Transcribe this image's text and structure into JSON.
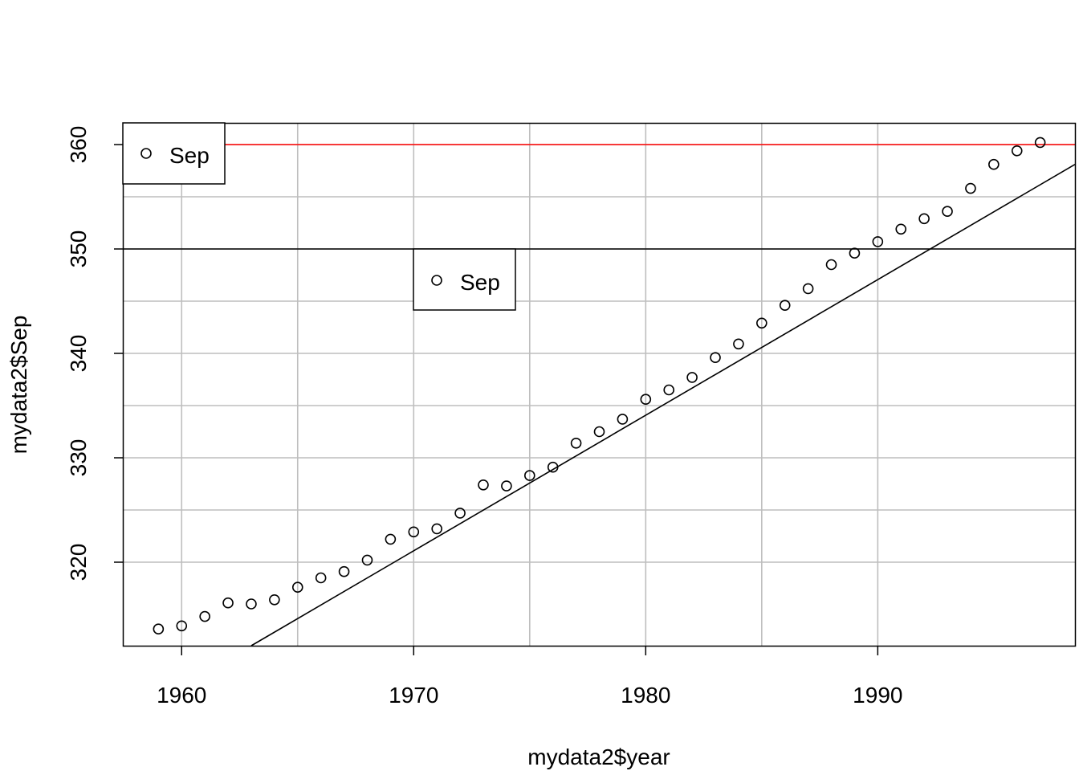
{
  "chart_data": {
    "type": "scatter",
    "xlabel": "mydata2$year",
    "ylabel": "mydata2$Sep",
    "xlim": [
      1957.5,
      1998.5
    ],
    "ylim": [
      312,
      362
    ],
    "xticks": [
      1960,
      1970,
      1980,
      1990
    ],
    "yticks": [
      320,
      330,
      340,
      350,
      360
    ],
    "grid": true,
    "grid_x": [
      1960,
      1965,
      1970,
      1975,
      1980,
      1985,
      1990
    ],
    "grid_y": [
      320,
      325,
      330,
      335,
      340,
      345,
      350,
      355,
      360
    ],
    "x": [
      1959,
      1960,
      1961,
      1962,
      1963,
      1964,
      1965,
      1966,
      1967,
      1968,
      1969,
      1970,
      1971,
      1972,
      1973,
      1974,
      1975,
      1976,
      1977,
      1978,
      1979,
      1980,
      1981,
      1982,
      1983,
      1984,
      1985,
      1986,
      1987,
      1988,
      1989,
      1990,
      1991,
      1992,
      1993,
      1994,
      1995,
      1996,
      1997
    ],
    "y": [
      313.6,
      313.9,
      314.8,
      316.1,
      316.0,
      316.4,
      317.6,
      318.5,
      319.1,
      320.2,
      322.2,
      322.9,
      323.2,
      324.7,
      327.4,
      327.3,
      328.3,
      329.1,
      331.4,
      332.5,
      333.7,
      335.6,
      336.5,
      337.7,
      339.6,
      340.9,
      342.9,
      344.6,
      346.2,
      348.5,
      349.6,
      350.7,
      351.9,
      352.9,
      353.6,
      355.8,
      358.1,
      359.4,
      360.2
    ],
    "series_name": "Sep",
    "reference_lines": [
      {
        "type": "h",
        "y": 360,
        "color": "#ff0000"
      },
      {
        "type": "h",
        "y": 350,
        "color": "#000000"
      },
      {
        "type": "abline",
        "x1": 1963,
        "y1": 312,
        "x2": 1998.5,
        "y2": 358.1,
        "color": "#000000"
      }
    ],
    "legends": [
      {
        "label": "Sep",
        "placement": "top-left"
      },
      {
        "label": "Sep",
        "placement": "center"
      }
    ]
  }
}
